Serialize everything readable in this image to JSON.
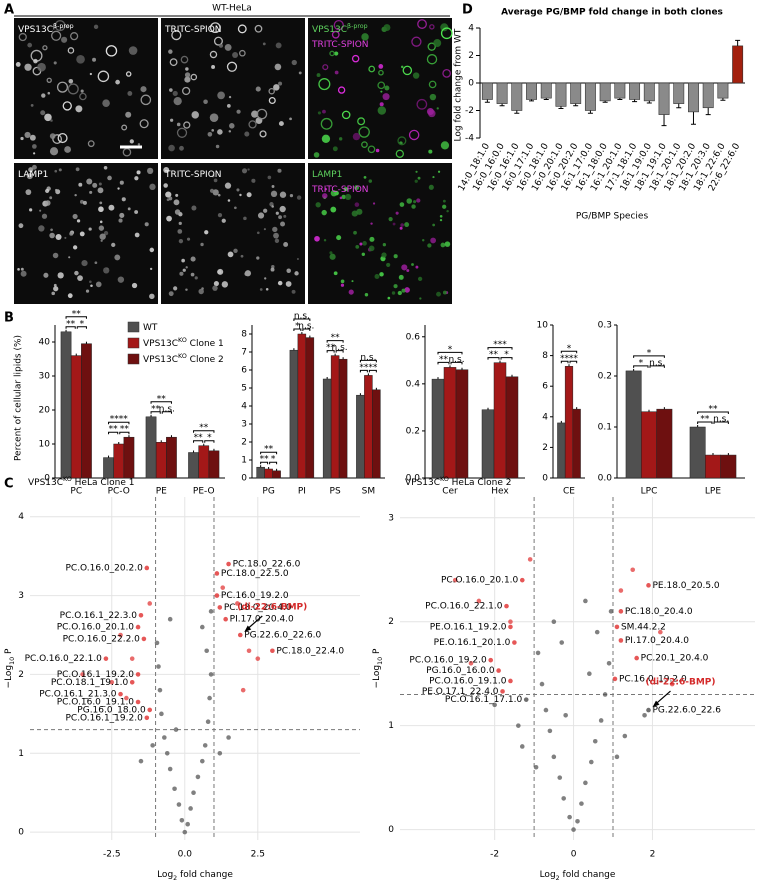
{
  "figure": {
    "panel_labels": [
      "A",
      "B",
      "C",
      "D"
    ],
    "header": "WT-HeLa",
    "images": [
      {
        "lines": [
          {
            "text": "VPS13C",
            "sup": "β-prop",
            "color": "#ffffff"
          }
        ]
      },
      {
        "lines": [
          {
            "text": "TRITC-SPION",
            "color": "#ffffff"
          }
        ]
      },
      {
        "lines": [
          {
            "text": "VPS13C",
            "sup": "β-prop",
            "color": "#5fd35f"
          },
          {
            "text": "TRITC-SPION",
            "color": "#e040e0"
          }
        ]
      },
      {
        "lines": [
          {
            "text": "LAMP1",
            "color": "#ffffff"
          }
        ]
      },
      {
        "lines": [
          {
            "text": "TRITC-SPION",
            "color": "#ffffff"
          }
        ]
      },
      {
        "lines": [
          {
            "text": "LAMP1",
            "color": "#5fd35f"
          },
          {
            "text": "TRITC-SPION",
            "color": "#e040e0"
          }
        ]
      }
    ]
  },
  "chart_data": [
    {
      "type": "bar",
      "title": "Average PG/BMP fold change in both clones",
      "ylabel": "Log fold change from WT",
      "xlabel": "PG/BMP Species",
      "categories": [
        "14:0_18:1.0",
        "16:0_16:0.0",
        "16:0_16:1.0",
        "16:0_17:1.0",
        "16:0_18:1.0",
        "16:0_20:1.0",
        "16:0_20:2.0",
        "16:1_17:0.0",
        "16:1_18:0.0",
        "16:1_20:1.0",
        "17:1_18:1.0",
        "18:1_19:0.0",
        "18:1_19:1.0",
        "18:1_20:1.0",
        "18:1_20:2.0",
        "18:1_20:3.0",
        "18:1_22:6.0",
        "22:6_22:6.0"
      ],
      "values": [
        -1.2,
        -1.5,
        -2.0,
        -1.2,
        -1.1,
        -1.7,
        -1.5,
        -2.0,
        -1.3,
        -1.1,
        -1.2,
        -1.3,
        -2.3,
        -1.5,
        -2.1,
        -1.8,
        -1.1,
        2.7
      ],
      "errors": [
        0.2,
        0.15,
        0.2,
        0.1,
        0.1,
        0.15,
        0.15,
        0.2,
        0.1,
        0.1,
        0.15,
        0.15,
        0.8,
        0.3,
        0.9,
        0.5,
        0.15,
        0.4
      ],
      "colors": [
        "#8a8a8a",
        "#8a8a8a",
        "#8a8a8a",
        "#8a8a8a",
        "#8a8a8a",
        "#8a8a8a",
        "#8a8a8a",
        "#8a8a8a",
        "#8a8a8a",
        "#8a8a8a",
        "#8a8a8a",
        "#8a8a8a",
        "#8a8a8a",
        "#8a8a8a",
        "#8a8a8a",
        "#8a8a8a",
        "#8a8a8a",
        "#a3200e"
      ],
      "ylim": [
        -4,
        4
      ],
      "yticks": [
        4,
        2,
        0,
        -2,
        -4
      ]
    },
    {
      "type": "grouped_bar",
      "ylabel": "Percent of cellular lipids (%)",
      "series": [
        {
          "name": {
            "text": "WT"
          },
          "color": "#505050"
        },
        {
          "name": {
            "text": "VPS13C",
            "sup": "KO",
            "rest": " Clone 1"
          },
          "color": "#a31818"
        },
        {
          "name": {
            "text": "VPS13C",
            "sup": "KO",
            "rest": " Clone 2"
          },
          "color": "#6e1010"
        }
      ],
      "panels": [
        {
          "categories": [
            "PC",
            "PC-O",
            "PE",
            "PE-O"
          ],
          "values": [
            [
              43,
              6,
              18,
              7.5
            ],
            [
              36,
              10,
              10.5,
              9.5
            ],
            [
              39.5,
              12,
              12,
              8
            ]
          ],
          "ylim": [
            0,
            45
          ],
          "yticks": [
            0,
            10,
            20,
            30,
            40
          ],
          "significance": [
            [
              "**",
              "*",
              "**"
            ],
            [
              "**",
              "**",
              "****"
            ],
            [
              "**",
              "n.s.",
              "**"
            ],
            [
              "**",
              "*",
              "**"
            ]
          ]
        },
        {
          "categories": [
            "PG",
            "PI",
            "PS",
            "SM"
          ],
          "values": [
            [
              0.6,
              7.1,
              5.5,
              4.6
            ],
            [
              0.5,
              8.0,
              6.8,
              5.7
            ],
            [
              0.4,
              7.8,
              6.6,
              4.9
            ]
          ],
          "ylim": [
            0,
            8.5
          ],
          "yticks": [
            0,
            1,
            2,
            3,
            4,
            5,
            6,
            7,
            8
          ],
          "significance": [
            [
              "**",
              "*",
              "**"
            ],
            [
              "*",
              "n.s.",
              "n.s."
            ],
            [
              "**",
              "n.s.",
              "**"
            ],
            [
              "**",
              "**",
              "n.s."
            ]
          ]
        },
        {
          "categories": [
            "Cer",
            "Hex"
          ],
          "values": [
            [
              0.42,
              0.29
            ],
            [
              0.47,
              0.49
            ],
            [
              0.46,
              0.43
            ]
          ],
          "ylim": [
            0,
            0.65
          ],
          "yticks": [
            {
              "value": 0,
              "label": "0.0"
            },
            0.2,
            0.4,
            0.6
          ],
          "significance": [
            [
              "**",
              "n.s.",
              "*"
            ],
            [
              "**",
              "*",
              "***"
            ]
          ]
        },
        {
          "categories": [
            "CE"
          ],
          "values": [
            [
              3.6
            ],
            [
              7.3
            ],
            [
              4.5
            ]
          ],
          "ylim": [
            0,
            10
          ],
          "yticks": [
            0,
            2,
            4,
            6,
            8,
            10
          ],
          "significance": [
            [
              "**",
              "**",
              "*"
            ]
          ]
        },
        {
          "categories": [
            "LPC",
            "LPE"
          ],
          "values": [
            [
              0.21,
              0.1
            ],
            [
              0.13,
              0.045
            ],
            [
              0.135,
              0.045
            ]
          ],
          "ylim": [
            0,
            0.3
          ],
          "yticks": [
            {
              "value": 0,
              "label": "0.0"
            },
            0.1,
            0.2,
            0.3
          ],
          "significance": [
            [
              "*",
              "n.s.",
              "*"
            ],
            [
              "**",
              "n.s.",
              "**"
            ]
          ]
        }
      ]
    },
    {
      "type": "volcano",
      "title": {
        "text": "VPS13C",
        "sup": "KO",
        "rest": " HeLa Clone 1"
      },
      "xlabel": {
        "text": "Log",
        "sub": "2",
        "rest": " fold change"
      },
      "ylabel": {
        "text": "−Log",
        "sub": "10",
        "rest": " P"
      },
      "xlim": [
        -5.3,
        6.0
      ],
      "ylim": [
        -0.1,
        4.25
      ],
      "xticks": [
        -2.5,
        {
          "value": 0,
          "label": "0.0"
        },
        2.5
      ],
      "yticks": [
        0,
        1,
        2,
        3,
        4
      ],
      "grid": true,
      "thresholds": {
        "x": [
          -1,
          1
        ],
        "y": 1.3
      },
      "color": "#555555",
      "highlight_color": "#e23a3a",
      "x": [
        0,
        0.1,
        -0.1,
        0.2,
        -0.2,
        0.3,
        -0.35,
        0.45,
        -0.5,
        0.6,
        -0.6,
        0.7,
        -0.7,
        0.8,
        -0.8,
        0.85,
        -0.85,
        0.9,
        -0.9,
        0.75,
        -0.95,
        0.6,
        -0.5,
        0.9,
        -1.1,
        1.2,
        -1.5,
        1.5,
        -2.0,
        2.0,
        -2.5,
        2.2,
        -1.8,
        1.8,
        -1.2,
        1.3,
        -3.5,
        -2.2,
        2.5,
        -0.3
      ],
      "y": [
        0,
        0.1,
        0.15,
        0.3,
        0.35,
        0.5,
        0.55,
        0.7,
        0.8,
        0.9,
        1.0,
        1.1,
        1.2,
        1.4,
        1.5,
        1.7,
        1.8,
        2.0,
        2.1,
        2.3,
        2.4,
        2.6,
        2.7,
        2.8,
        1.1,
        1.0,
        0.9,
        1.2,
        1.7,
        1.8,
        1.9,
        2.3,
        2.2,
        2.9,
        2.9,
        3.1,
        2.0,
        2.5,
        2.2,
        1.3
      ],
      "points": [
        {
          "label": "PC.18.0_22.6.0",
          "x": 1.5,
          "y": 3.4
        },
        {
          "label": "PC.18.0_22.5.0",
          "x": 1.1,
          "y": 3.28
        },
        {
          "label": "PC.16.0_19.2.0",
          "x": 1.1,
          "y": 3.0
        },
        {
          "label": "PC.18.0_20.4.0",
          "x": 1.2,
          "y": 2.85
        },
        {
          "label": "PI.17.0_20.4.0",
          "x": 1.4,
          "y": 2.7
        },
        {
          "label": "PG.22.6.0_22.6.0",
          "x": 1.9,
          "y": 2.5
        },
        {
          "label": "PC.18.0_22.4.0",
          "x": 3.0,
          "y": 2.3
        },
        {
          "label": "PC.O.16.0_20.2.0",
          "x": -1.3,
          "y": 3.35
        },
        {
          "label": "PC.O.16.1_22.3.0",
          "x": -1.5,
          "y": 2.75
        },
        {
          "label": "PC.O.16.0_20.1.0",
          "x": -1.6,
          "y": 2.6
        },
        {
          "label": "PC.O.16.0_22.2.0",
          "x": -1.4,
          "y": 2.45
        },
        {
          "label": "PC.O.16.0_22.1.0",
          "x": -2.7,
          "y": 2.2
        },
        {
          "label": "PC.O.16.1_19.2.0",
          "x": -1.6,
          "y": 2.0
        },
        {
          "label": "PC.O.18.1_19.1.0",
          "x": -1.8,
          "y": 1.9
        },
        {
          "label": "PC.O.16.1_21.3.0",
          "x": -2.2,
          "y": 1.75
        },
        {
          "label": "PC.O.16.0_19.1.0",
          "x": -1.6,
          "y": 1.65
        },
        {
          "label": "PG.16.0_18.0.0",
          "x": -1.2,
          "y": 1.55
        },
        {
          "label": "PC.O.16.1_19.2.0",
          "x": -1.3,
          "y": 1.45
        }
      ],
      "annotation": {
        "text": "(di-22:6-BMP)",
        "point": "PG.22.6.0_22.6.0",
        "color": "#d42a2a"
      }
    },
    {
      "type": "volcano",
      "title": {
        "text": "VPS13C",
        "sup": "KO",
        "rest": " HeLa Clone 2"
      },
      "xlabel": {
        "text": "Log",
        "sub": "2",
        "rest": " fold change"
      },
      "ylabel": {
        "text": "−Log",
        "sub": "10",
        "rest": " P"
      },
      "xlim": [
        -4.4,
        4.6
      ],
      "ylim": [
        -0.1,
        3.2
      ],
      "xticks": [
        -2,
        0,
        2
      ],
      "yticks": [
        0,
        1,
        2,
        3
      ],
      "grid": true,
      "thresholds": {
        "x": [
          -1,
          1
        ],
        "y": 1.3
      },
      "color": "#555555",
      "highlight_color": "#e23a3a",
      "x": [
        0,
        0.1,
        -0.1,
        0.2,
        -0.25,
        0.3,
        -0.35,
        0.45,
        -0.5,
        0.55,
        -0.6,
        0.7,
        -0.7,
        0.8,
        -0.8,
        0.9,
        -0.9,
        0.6,
        -0.5,
        0.3,
        -0.3,
        1.3,
        -1.4,
        1.8,
        -2.0,
        2.5,
        -2.6,
        1.5,
        -1.1,
        1.2,
        -3.0,
        -2.4,
        2.2,
        -1.6,
        0.95,
        -0.95,
        0.4,
        -0.2,
        1.1,
        -1.3
      ],
      "y": [
        0,
        0.08,
        0.12,
        0.25,
        0.3,
        0.45,
        0.5,
        0.65,
        0.7,
        0.85,
        0.95,
        1.05,
        1.15,
        1.3,
        1.4,
        1.6,
        1.7,
        1.9,
        2.0,
        2.2,
        1.8,
        0.9,
        1.0,
        1.1,
        1.2,
        1.4,
        1.6,
        2.5,
        2.6,
        2.3,
        2.4,
        2.2,
        1.9,
        2.0,
        2.1,
        0.6,
        1.5,
        1.1,
        0.7,
        0.8
      ],
      "points": [
        {
          "label": "PE.18.0_20.5.0",
          "x": 1.9,
          "y": 2.35
        },
        {
          "label": "PC.18.0_20.4.0",
          "x": 1.2,
          "y": 2.1
        },
        {
          "label": "SM.44.2.2",
          "x": 1.1,
          "y": 1.95
        },
        {
          "label": "PI.17.0_20.4.0",
          "x": 1.2,
          "y": 1.82
        },
        {
          "label": "PC.20.1_20.4.0",
          "x": 1.6,
          "y": 1.65
        },
        {
          "label": "PC.16.0_19.2.0",
          "x": 1.05,
          "y": 1.45
        },
        {
          "label": "PG.22.6.0_22.6",
          "x": 1.9,
          "y": 1.15
        },
        {
          "label": "PC.O.16.0_20.1.0",
          "x": -1.3,
          "y": 2.4
        },
        {
          "label": "PC.O.16.0_22.1.0",
          "x": -1.7,
          "y": 2.15
        },
        {
          "label": "PE.O.16.1_19.2.0",
          "x": -1.6,
          "y": 1.95
        },
        {
          "label": "PE.O.16.1_20.1.0",
          "x": -1.5,
          "y": 1.8
        },
        {
          "label": "PC.O.16.0_19.2.0",
          "x": -2.1,
          "y": 1.63
        },
        {
          "label": "PG.16.0_16.0.0",
          "x": -1.9,
          "y": 1.53
        },
        {
          "label": "PC.O.16.0_19.1.0",
          "x": -1.6,
          "y": 1.43
        },
        {
          "label": "PE.O.17.1_22.4.0",
          "x": -1.8,
          "y": 1.33
        },
        {
          "label": "PC.O.16.1_17.1.0",
          "x": -1.2,
          "y": 1.25
        }
      ],
      "annotation": {
        "text": "(di-22:6-BMP)",
        "point": "PG.22.6.0_22.6",
        "color": "#d42a2a"
      }
    }
  ]
}
